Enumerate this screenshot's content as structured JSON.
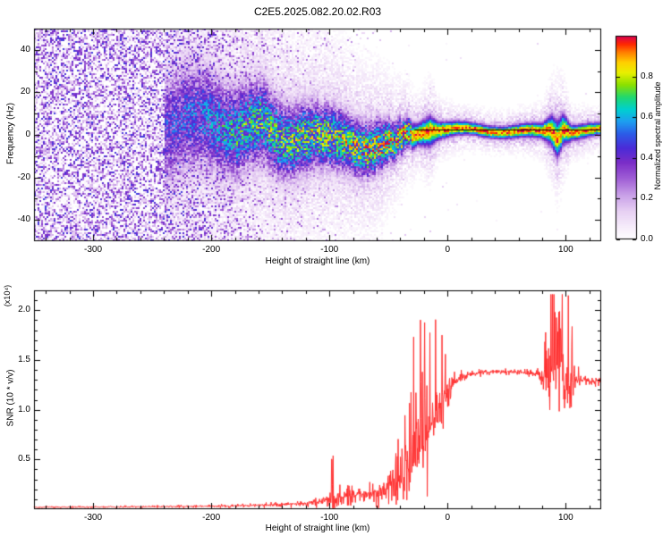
{
  "title": "C2E5.2025.082.20.02.R03",
  "background": "#ffffff",
  "chart_data": [
    {
      "type": "heatmap",
      "title": "C2E5.2025.082.20.02.R03",
      "xlabel": "Height of straight line (km)",
      "ylabel": "Frequency (Hz)",
      "xlim": [
        -350,
        130
      ],
      "ylim": [
        -50,
        50
      ],
      "grid": false,
      "xticks": [
        {
          "v": -300,
          "label": "-300"
        },
        {
          "v": -200,
          "label": "-200"
        },
        {
          "v": -100,
          "label": "-100"
        },
        {
          "v": 0,
          "label": "0"
        },
        {
          "v": 100,
          "label": "100"
        }
      ],
      "yticks": [
        {
          "v": -40,
          "label": "-40"
        },
        {
          "v": -20,
          "label": "-20"
        },
        {
          "v": 0,
          "label": "0"
        },
        {
          "v": 20,
          "label": "20"
        },
        {
          "v": 40,
          "label": "40"
        }
      ],
      "colorbar": {
        "label": "Normalized spectral amplitude",
        "range": [
          0,
          1
        ],
        "ticks": [
          {
            "v": 0.0,
            "label": "0.0"
          },
          {
            "v": 0.2,
            "label": "0.2"
          },
          {
            "v": 0.4,
            "label": "0.4"
          },
          {
            "v": 0.6,
            "label": "0.6"
          },
          {
            "v": 0.8,
            "label": "0.8"
          }
        ],
        "colormap": [
          [
            0.0,
            "#ffffff"
          ],
          [
            0.06,
            "#f7eefb"
          ],
          [
            0.14,
            "#e7d0f3"
          ],
          [
            0.22,
            "#c9a0e8"
          ],
          [
            0.3,
            "#a05fd6"
          ],
          [
            0.38,
            "#7a2dc8"
          ],
          [
            0.45,
            "#4b2bd8"
          ],
          [
            0.52,
            "#2b5ce8"
          ],
          [
            0.58,
            "#1e9ef0"
          ],
          [
            0.64,
            "#00d0d0"
          ],
          [
            0.7,
            "#20d870"
          ],
          [
            0.76,
            "#8ae000"
          ],
          [
            0.82,
            "#e8f000"
          ],
          [
            0.87,
            "#ffd000"
          ],
          [
            0.92,
            "#ff8000"
          ],
          [
            0.96,
            "#ff2800"
          ],
          [
            1.0,
            "#d80050"
          ]
        ]
      },
      "noise_profile": [
        [
          -350,
          0.52,
          1.0
        ],
        [
          -230,
          0.5,
          1.0
        ],
        [
          -200,
          0.42,
          0.95
        ],
        [
          -180,
          0.3,
          0.85
        ],
        [
          -150,
          0.18,
          0.75
        ],
        [
          -120,
          0.1,
          0.65
        ],
        [
          -90,
          0.05,
          0.55
        ],
        [
          -60,
          0.02,
          0.45
        ],
        [
          -30,
          0.006,
          0.35
        ],
        [
          0,
          0.002,
          0.3
        ],
        [
          130,
          0.001,
          0.3
        ]
      ],
      "signal_band": [
        [
          -240,
          4,
          18,
          0.45
        ],
        [
          -200,
          5,
          16,
          0.55
        ],
        [
          -180,
          2,
          14,
          0.65
        ],
        [
          -160,
          4,
          13,
          0.7
        ],
        [
          -140,
          -1,
          12,
          0.7
        ],
        [
          -120,
          2,
          11,
          0.75
        ],
        [
          -100,
          -2,
          10,
          0.75
        ],
        [
          -80,
          -3,
          9,
          0.8
        ],
        [
          -60,
          -5,
          8,
          0.85
        ],
        [
          -45,
          -6,
          6,
          0.9
        ],
        [
          -35,
          -3,
          5,
          0.95
        ],
        [
          -25,
          0,
          3.5,
          1.0
        ],
        [
          -15,
          2,
          5,
          1.0
        ],
        [
          -8,
          2,
          3,
          1.0
        ],
        [
          0,
          2,
          2.5,
          1.0
        ],
        [
          20,
          2,
          2,
          1.0
        ],
        [
          50,
          2,
          2,
          1.0
        ],
        [
          80,
          2,
          2.5,
          1.0
        ],
        [
          88,
          3,
          5,
          1.0
        ],
        [
          93,
          -1,
          6,
          1.0
        ],
        [
          98,
          4,
          5,
          1.0
        ],
        [
          105,
          2,
          2.5,
          1.0
        ],
        [
          130,
          2,
          2,
          1.0
        ]
      ],
      "overlay_line": {
        "freq": 2.5,
        "x_start": -28,
        "x_end": 130,
        "color": "#000000"
      }
    },
    {
      "type": "line",
      "xlabel": "Height of straight line (km)",
      "ylabel": "SNR (10 * v/v)",
      "y_scale_label": "(x10⁴)",
      "xlim": [
        -350,
        130
      ],
      "ylim": [
        0,
        2.2
      ],
      "grid": false,
      "xticks": [
        {
          "v": -300,
          "label": "-300"
        },
        {
          "v": -200,
          "label": "-200"
        },
        {
          "v": -100,
          "label": "-100"
        },
        {
          "v": 0,
          "label": "0"
        },
        {
          "v": 100,
          "label": "100"
        }
      ],
      "yticks": [
        {
          "v": 0.5,
          "label": "0.5"
        },
        {
          "v": 1.0,
          "label": "1.0"
        },
        {
          "v": 1.5,
          "label": "1.5"
        },
        {
          "v": 2.0,
          "label": "2.0"
        }
      ],
      "series": [
        {
          "name": "SNR",
          "color": "#ff3030",
          "keypoints": [
            [
              -350,
              0.02,
              0.012
            ],
            [
              -260,
              0.025,
              0.015
            ],
            [
              -200,
              0.03,
              0.02
            ],
            [
              -160,
              0.04,
              0.03
            ],
            [
              -140,
              0.05,
              0.04
            ],
            [
              -120,
              0.06,
              0.05
            ],
            [
              -105,
              0.08,
              0.08
            ],
            [
              -97,
              0.13,
              0.28
            ],
            [
              -90,
              0.12,
              0.18
            ],
            [
              -80,
              0.14,
              0.12
            ],
            [
              -70,
              0.16,
              0.14
            ],
            [
              -60,
              0.18,
              0.18
            ],
            [
              -52,
              0.22,
              0.25
            ],
            [
              -45,
              0.25,
              0.35
            ],
            [
              -38,
              0.3,
              0.55
            ],
            [
              -30,
              0.45,
              0.7
            ],
            [
              -24,
              0.55,
              0.8
            ],
            [
              -18,
              0.7,
              0.75
            ],
            [
              -12,
              0.9,
              0.6
            ],
            [
              -6,
              1.05,
              0.45
            ],
            [
              0,
              1.2,
              0.25
            ],
            [
              6,
              1.28,
              0.15
            ],
            [
              12,
              1.33,
              0.09
            ],
            [
              20,
              1.36,
              0.06
            ],
            [
              35,
              1.38,
              0.04
            ],
            [
              55,
              1.38,
              0.04
            ],
            [
              75,
              1.36,
              0.07
            ],
            [
              83,
              1.32,
              0.3
            ],
            [
              88,
              1.35,
              0.6
            ],
            [
              93,
              1.45,
              0.65
            ],
            [
              98,
              1.4,
              0.7
            ],
            [
              103,
              1.25,
              0.45
            ],
            [
              108,
              1.3,
              0.2
            ],
            [
              115,
              1.3,
              0.1
            ],
            [
              122,
              1.28,
              0.08
            ],
            [
              130,
              1.3,
              0.06
            ]
          ]
        }
      ]
    }
  ]
}
